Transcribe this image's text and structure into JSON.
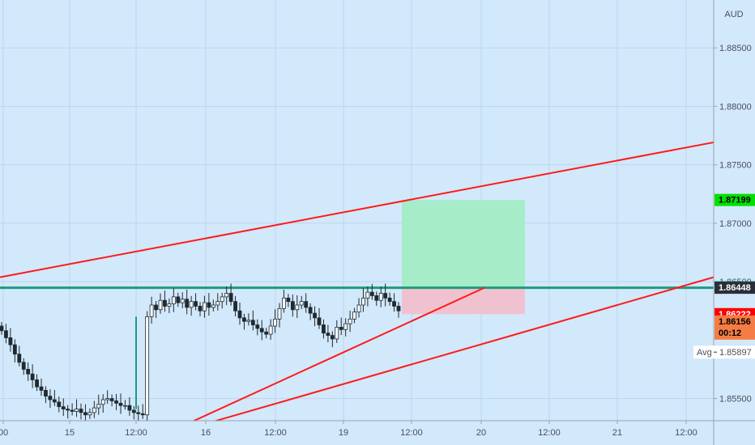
{
  "chart_data": {
    "type": "candlestick",
    "currency_label": "AUD",
    "x_ticks": [
      "00",
      "15",
      "12:00",
      "16",
      "12:00",
      "19",
      "12:00",
      "20",
      "12:00",
      "21",
      "12:00"
    ],
    "y_ticks": [
      "1.88500",
      "1.88000",
      "1.87500",
      "1.87000",
      "1.86500",
      "1.85500"
    ],
    "ylim": [
      1.8531,
      1.8891
    ],
    "grid": true,
    "price_tags": [
      {
        "label": "1.87199",
        "value": 1.87199,
        "bg": "#00e000",
        "fg": "#000000"
      },
      {
        "label": "1.86452",
        "value": 1.86452,
        "bg": "#1e9b7e",
        "fg": "#ffffff"
      },
      {
        "label": "1.86448",
        "value": 1.86448,
        "bg": "#2a2e39",
        "fg": "#ffffff"
      },
      {
        "label": "1.86222",
        "value": 1.86222,
        "bg": "#ff0000",
        "fg": "#ffffff"
      },
      {
        "label": "1.86156",
        "value": 1.86156,
        "bg": "#f57c45",
        "fg": "#000000"
      }
    ],
    "countdown": "00:12",
    "avg": {
      "label": "Avg",
      "value": "1.85897",
      "price": 1.85897
    },
    "horizontal_line": {
      "price": 1.86448,
      "color": "#1e9b7e"
    },
    "position_box": {
      "entry": 1.86448,
      "target": 1.87199,
      "stop": 1.86222,
      "target_color": "#a6ecc9",
      "stop_color": "#f0c2cf"
    },
    "trendlines": [
      {
        "color": "#ff1a1a",
        "p1": [
          0,
          1.86538
        ],
        "p2": [
          881,
          1.87692
        ]
      },
      {
        "color": "#ff1a1a",
        "p1": [
          232,
          1.85286
        ],
        "p2": [
          598,
          1.86448
        ]
      },
      {
        "color": "#ff1a1a",
        "p1": [
          255,
          1.85286
        ],
        "p2": [
          881,
          1.86538
        ]
      }
    ],
    "close_series": [
      1.8608,
      1.8602,
      1.8596,
      1.8588,
      1.8581,
      1.8575,
      1.8571,
      1.8566,
      1.856,
      1.8557,
      1.8552,
      1.8549,
      1.8547,
      1.8543,
      1.8541,
      1.854,
      1.8539,
      1.8541,
      1.8538,
      1.8536,
      1.8538,
      1.8542,
      1.8545,
      1.8549,
      1.855,
      1.8548,
      1.8546,
      1.8544,
      1.8544,
      1.854,
      1.8538,
      1.8537,
      1.8536,
      1.862,
      1.863,
      1.8626,
      1.8634,
      1.8629,
      1.8631,
      1.8637,
      1.8632,
      1.8635,
      1.8628,
      1.8633,
      1.8629,
      1.8625,
      1.8632,
      1.8628,
      1.863,
      1.8633,
      1.8637,
      1.864,
      1.8633,
      1.8625,
      1.8619,
      1.8616,
      1.8617,
      1.8613,
      1.861,
      1.8607,
      1.8605,
      1.8612,
      1.8618,
      1.8627,
      1.8636,
      1.8633,
      1.8626,
      1.863,
      1.8633,
      1.8628,
      1.8623,
      1.8619,
      1.8613,
      1.8606,
      1.8604,
      1.8601,
      1.8611,
      1.8609,
      1.8614,
      1.8618,
      1.8624,
      1.863,
      1.8636,
      1.8641,
      1.8638,
      1.8634,
      1.864,
      1.8636,
      1.8633,
      1.8629,
      1.8625
    ]
  }
}
